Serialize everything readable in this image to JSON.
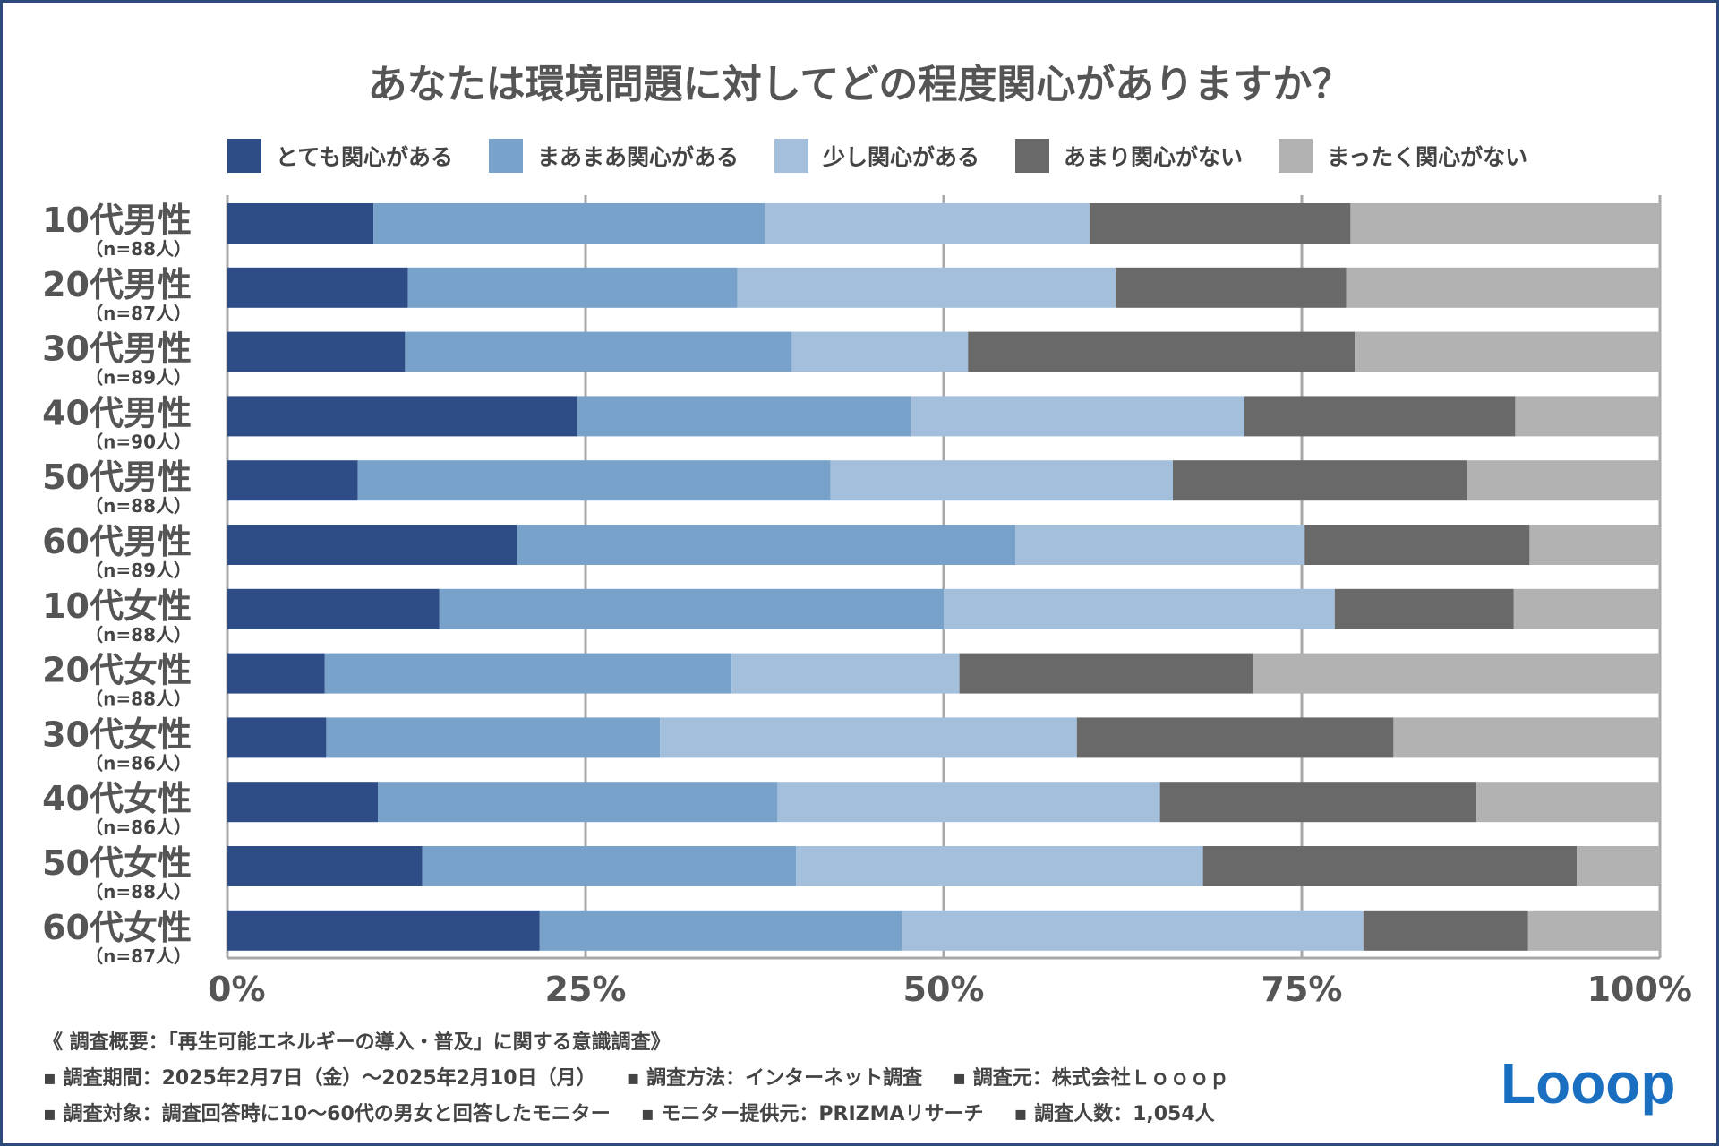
{
  "chart_data": {
    "type": "bar",
    "orientation": "horizontal",
    "stacked": true,
    "title": "あなたは環境問題に対してどの程度関心がありますか？",
    "categories": [
      "10代男性",
      "20代男性",
      "30代男性",
      "40代男性",
      "50代男性",
      "60代男性",
      "10代女性",
      "20代女性",
      "30代女性",
      "40代女性",
      "50代女性",
      "60代女性"
    ],
    "category_samples": [
      "（n=88人）",
      "（n=87人）",
      "（n=89人）",
      "（n=90人）",
      "（n=88人）",
      "（n=89人）",
      "（n=88人）",
      "（n=88人）",
      "（n=86人）",
      "（n=86人）",
      "（n=88人）",
      "（n=87人）"
    ],
    "series": [
      {
        "name": "とても関心がある",
        "color": "#2e4d87",
        "values": [
          10.2,
          12.6,
          12.4,
          24.4,
          9.1,
          20.2,
          14.8,
          6.8,
          6.9,
          10.5,
          13.6,
          21.8
        ]
      },
      {
        "name": "まあまあ関心がある",
        "color": "#78a2c9",
        "values": [
          27.3,
          23.0,
          27.0,
          23.3,
          33.0,
          34.8,
          35.2,
          28.4,
          23.3,
          27.9,
          26.1,
          25.3
        ]
      },
      {
        "name": "少し関心がある",
        "color": "#a3bfdb",
        "values": [
          22.7,
          26.4,
          12.3,
          23.3,
          23.9,
          20.2,
          27.3,
          15.9,
          29.1,
          26.7,
          28.4,
          32.2
        ]
      },
      {
        "name": "あまり関心がない",
        "color": "#696969",
        "values": [
          18.2,
          16.1,
          27.0,
          18.9,
          20.5,
          15.7,
          12.5,
          20.5,
          22.1,
          22.1,
          26.1,
          11.5
        ]
      },
      {
        "name": "まったく関心がない",
        "color": "#b2b2b2",
        "values": [
          21.6,
          21.9,
          21.3,
          10.1,
          13.5,
          9.1,
          10.2,
          28.4,
          18.6,
          12.8,
          5.8,
          9.2
        ]
      }
    ],
    "x_ticks": [
      "0%",
      "25%",
      "50%",
      "75%",
      "100%"
    ],
    "xlim": [
      0,
      100
    ],
    "grid": true,
    "legend_position": "top"
  },
  "notes": {
    "heading": "《 調査概要：「再生可能エネルギーの導入・普及」に関する意識調査》",
    "line2": [
      "▪ 調査期間：2025年2月7日（金）～2025年2月10日（月）",
      "▪ 調査方法：インターネット調査",
      "▪ 調査元：株式会社Ｌｏｏｏｐ"
    ],
    "line3": [
      "▪ 調査対象：調査回答時に10～60代の男女と回答したモニター",
      "▪ モニター提供元：PRIZMAリサーチ",
      "▪ 調査人数：1,054人"
    ]
  },
  "logo": {
    "text": "Looop",
    "color": "#1a6fc0"
  }
}
